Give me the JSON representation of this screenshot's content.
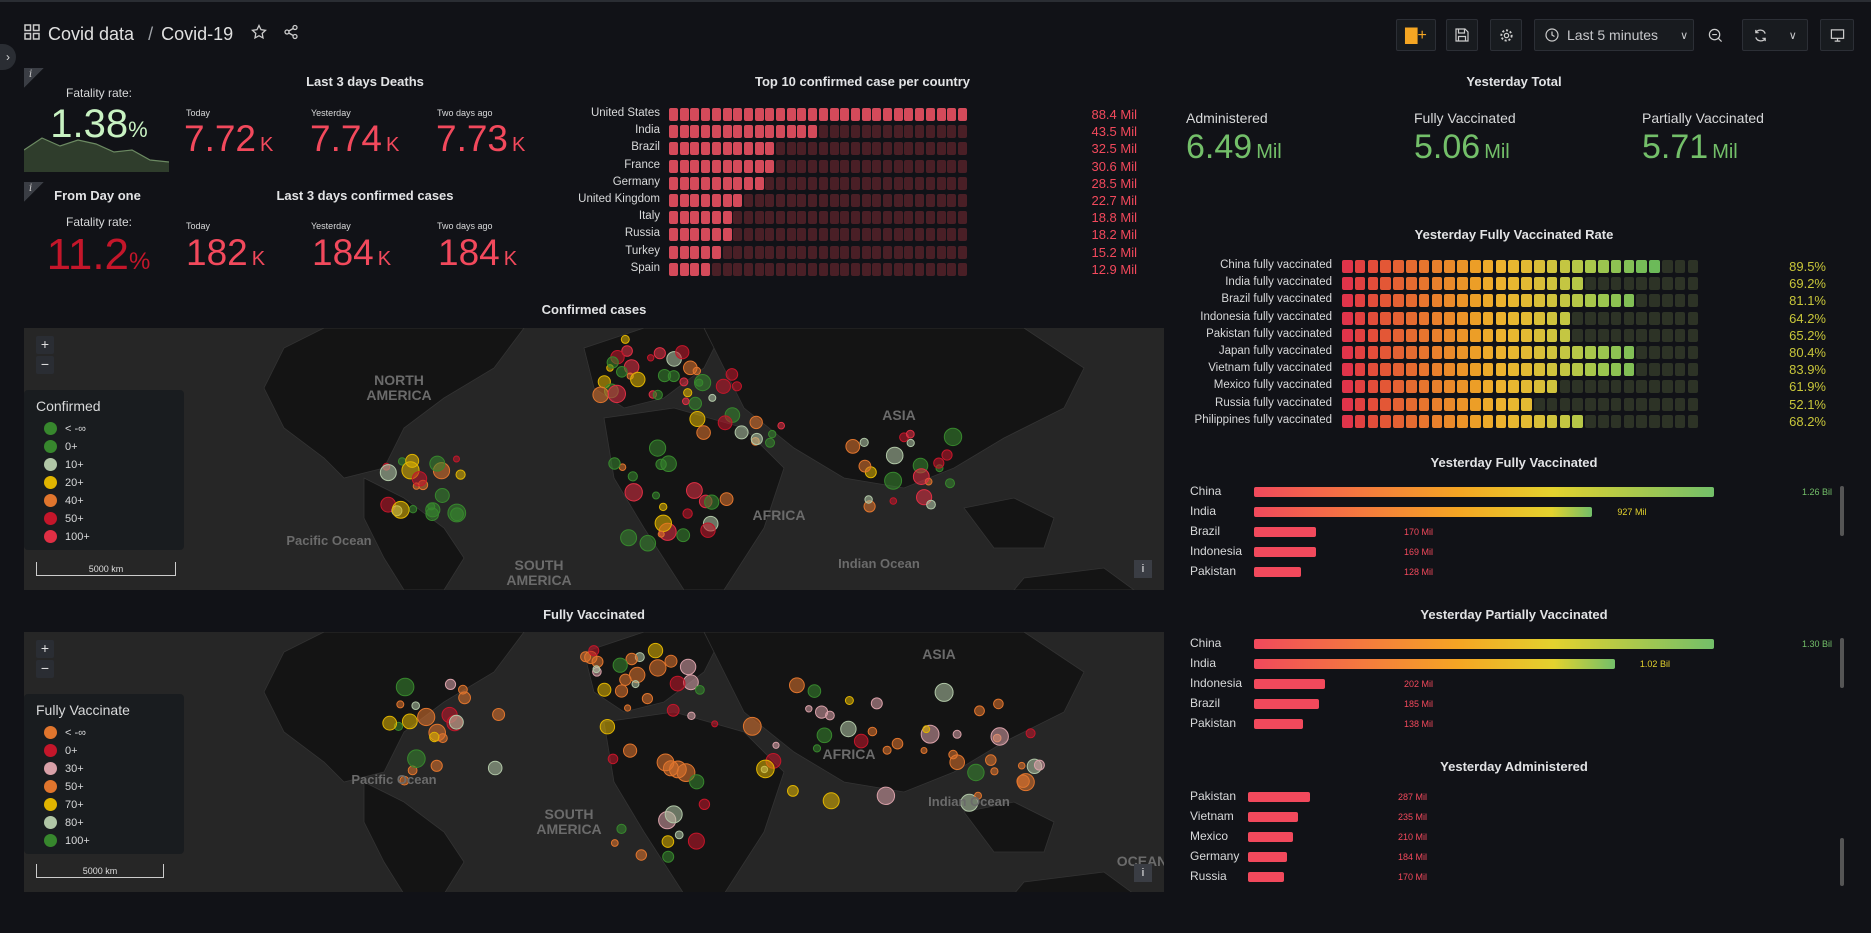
{
  "header": {
    "folder": "Covid data",
    "title": "Covid-19",
    "time_range": "Last 5 minutes"
  },
  "fatality_recent": {
    "label": "Fatality rate:",
    "value": "1.38",
    "unit": "%"
  },
  "fatality_total": {
    "title": "From Day one",
    "label": "Fatality rate:",
    "value": "11.2",
    "unit": "%"
  },
  "deaths": {
    "title": "Last 3 days Deaths",
    "items": [
      {
        "label": "Today",
        "value": "7.72",
        "unit": "K"
      },
      {
        "label": "Yesterday",
        "value": "7.74",
        "unit": "K"
      },
      {
        "label": "Two days ago",
        "value": "7.73",
        "unit": "K"
      }
    ]
  },
  "confirmed": {
    "title": "Last 3 days confirmed cases",
    "items": [
      {
        "label": "Today",
        "value": "182",
        "unit": "K"
      },
      {
        "label": "Yesterday",
        "value": "184",
        "unit": "K"
      },
      {
        "label": "Two days ago",
        "value": "184",
        "unit": "K"
      }
    ]
  },
  "top10": {
    "title": "Top 10 confirmed case per country",
    "rows": [
      {
        "country": "United States",
        "value": "88.4 Mil",
        "num": 88.4
      },
      {
        "country": "India",
        "value": "43.5 Mil",
        "num": 43.5
      },
      {
        "country": "Brazil",
        "value": "32.5 Mil",
        "num": 32.5
      },
      {
        "country": "France",
        "value": "30.6 Mil",
        "num": 30.6
      },
      {
        "country": "Germany",
        "value": "28.5 Mil",
        "num": 28.5
      },
      {
        "country": "United Kingdom",
        "value": "22.7 Mil",
        "num": 22.7
      },
      {
        "country": "Italy",
        "value": "18.8 Mil",
        "num": 18.8
      },
      {
        "country": "Russia",
        "value": "18.2 Mil",
        "num": 18.2
      },
      {
        "country": "Turkey",
        "value": "15.2 Mil",
        "num": 15.2
      },
      {
        "country": "Spain",
        "value": "12.9 Mil",
        "num": 12.9
      }
    ]
  },
  "yesterday_total": {
    "title": "Yesterday Total",
    "items": [
      {
        "label": "Administered",
        "value": "6.49",
        "unit": "Mil"
      },
      {
        "label": "Fully Vaccinated",
        "value": "5.06",
        "unit": "Mil"
      },
      {
        "label": "Partially Vaccinated",
        "value": "5.71",
        "unit": "Mil"
      }
    ]
  },
  "vacc_rate": {
    "title": "Yesterday Fully Vaccinated Rate",
    "rows": [
      {
        "label": "China fully vaccinated",
        "value": "89.5%",
        "num": 89.5
      },
      {
        "label": "India fully vaccinated",
        "value": "69.2%",
        "num": 69.2
      },
      {
        "label": "Brazil fully vaccinated",
        "value": "81.1%",
        "num": 81.1
      },
      {
        "label": "Indonesia fully vaccinated",
        "value": "64.2%",
        "num": 64.2
      },
      {
        "label": "Pakistan fully vaccinated",
        "value": "65.2%",
        "num": 65.2
      },
      {
        "label": "Japan fully vaccinated",
        "value": "80.4%",
        "num": 80.4
      },
      {
        "label": "Vietnam fully vaccinated",
        "value": "83.9%",
        "num": 83.9
      },
      {
        "label": "Mexico fully vaccinated",
        "value": "61.9%",
        "num": 61.9
      },
      {
        "label": "Russia fully vaccinated",
        "value": "52.1%",
        "num": 52.1
      },
      {
        "label": "Philippines fully vaccinated",
        "value": "68.2%",
        "num": 68.2
      }
    ]
  },
  "map_confirmed": {
    "title": "Confirmed cases",
    "legend_title": "Confirmed",
    "legend": [
      {
        "label": "< -∞",
        "color": "#37872d"
      },
      {
        "label": "0+",
        "color": "#37872d"
      },
      {
        "label": "10+",
        "color": "#b0c6a6"
      },
      {
        "label": "20+",
        "color": "#e0b400"
      },
      {
        "label": "40+",
        "color": "#e0752d"
      },
      {
        "label": "50+",
        "color": "#c4162a"
      },
      {
        "label": "100+",
        "color": "#e02f44"
      }
    ],
    "scale": "5000 km",
    "labels": [
      "NORTH AMERICA",
      "SOUTH AMERICA",
      "AFRICA",
      "ASIA",
      "Pacific Ocean",
      "Indian Ocean"
    ]
  },
  "map_vacc": {
    "title": "Fully Vaccinated",
    "legend_title": "Fully Vaccinate",
    "legend": [
      {
        "label": "< -∞",
        "color": "#e0752d"
      },
      {
        "label": "0+",
        "color": "#c4162a"
      },
      {
        "label": "30+",
        "color": "#d8a0a8"
      },
      {
        "label": "50+",
        "color": "#e0752d"
      },
      {
        "label": "70+",
        "color": "#e0b400"
      },
      {
        "label": "80+",
        "color": "#b0c6a6"
      },
      {
        "label": "100+",
        "color": "#37872d"
      }
    ],
    "scale": "5000 km",
    "labels": [
      "SOUTH AMERICA",
      "AFRICA",
      "ASIA",
      "OCEANIA",
      "Pacific Ocean",
      "Indian Ocean"
    ]
  },
  "fully_vacc": {
    "title": "Yesterday Fully Vaccinated",
    "rows": [
      {
        "label": "China",
        "value": "1.26 Bil",
        "num": 1260
      },
      {
        "label": "India",
        "value": "927 Mil",
        "num": 927
      },
      {
        "label": "Brazil",
        "value": "170 Mil",
        "num": 170
      },
      {
        "label": "Indonesia",
        "value": "169 Mil",
        "num": 169
      },
      {
        "label": "Pakistan",
        "value": "128 Mil",
        "num": 128
      }
    ]
  },
  "partial_vacc": {
    "title": "Yesterday Partially Vaccinated",
    "rows": [
      {
        "label": "China",
        "value": "1.30 Bil",
        "num": 1300
      },
      {
        "label": "India",
        "value": "1.02 Bil",
        "num": 1020
      },
      {
        "label": "Indonesia",
        "value": "202 Mil",
        "num": 202
      },
      {
        "label": "Brazil",
        "value": "185 Mil",
        "num": 185
      },
      {
        "label": "Pakistan",
        "value": "138 Mil",
        "num": 138
      }
    ]
  },
  "administered": {
    "title": "Yesterday Administered",
    "rows": [
      {
        "label": "Pakistan",
        "value": "287 Mil",
        "num": 287
      },
      {
        "label": "Vietnam",
        "value": "235 Mil",
        "num": 235
      },
      {
        "label": "Mexico",
        "value": "210 Mil",
        "num": 210
      },
      {
        "label": "Germany",
        "value": "184 Mil",
        "num": 184
      },
      {
        "label": "Russia",
        "value": "170 Mil",
        "num": 170
      }
    ]
  }
}
